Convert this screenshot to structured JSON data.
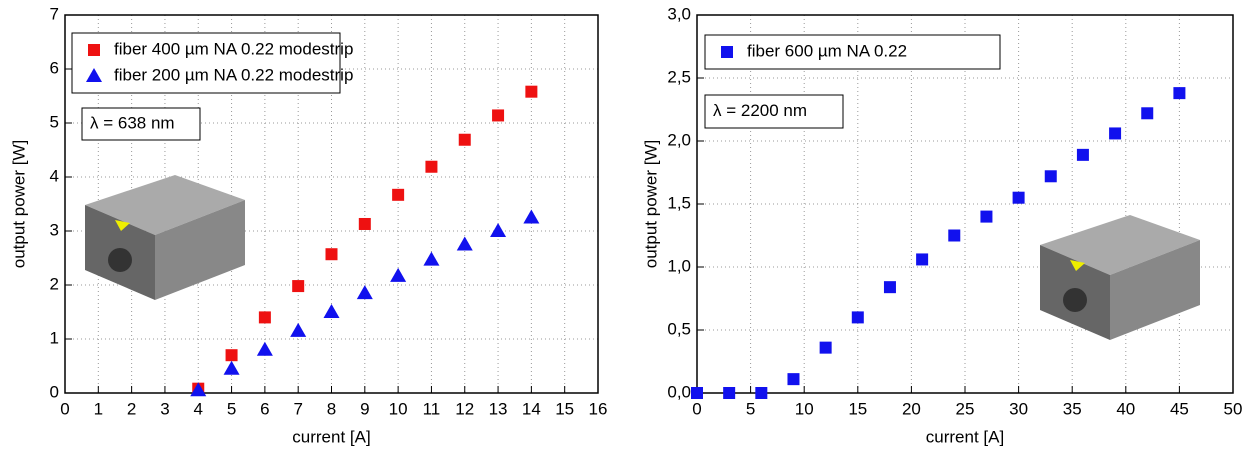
{
  "chart_data": [
    {
      "type": "scatter",
      "x_label": "current [A]",
      "y_label": "output power [W]",
      "annotation": "λ = 638 nm",
      "xlim": [
        0,
        16
      ],
      "xticks": [
        0,
        1,
        2,
        3,
        4,
        5,
        6,
        7,
        8,
        9,
        10,
        11,
        12,
        13,
        14,
        15,
        16
      ],
      "ylim": [
        0,
        7
      ],
      "yticks": [
        0,
        1,
        2,
        3,
        4,
        5,
        6,
        7
      ],
      "grid": true,
      "series": [
        {
          "name": "fiber 400 µm NA 0.22 modestrip",
          "color": "#ee1111",
          "marker": "square",
          "x": [
            4,
            5,
            6,
            7,
            8,
            9,
            10,
            11,
            12,
            13,
            14
          ],
          "values": [
            0.08,
            0.7,
            1.4,
            1.98,
            2.57,
            3.13,
            3.67,
            4.19,
            4.69,
            5.14,
            5.58
          ]
        },
        {
          "name": "fiber 200 µm NA 0.22 modestrip",
          "color": "#1111ee",
          "marker": "triangle",
          "x": [
            4,
            5,
            6,
            7,
            8,
            9,
            10,
            11,
            12,
            13,
            14
          ],
          "values": [
            0.05,
            0.45,
            0.8,
            1.15,
            1.5,
            1.85,
            2.17,
            2.47,
            2.75,
            3.0,
            3.25
          ]
        }
      ]
    },
    {
      "type": "scatter",
      "x_label": "current [A]",
      "y_label": "output power [W]",
      "annotation": "λ = 2200 nm",
      "xlim": [
        0,
        50
      ],
      "xticks": [
        0,
        5,
        10,
        15,
        20,
        25,
        30,
        35,
        40,
        45,
        50
      ],
      "ylim": [
        0,
        3
      ],
      "yticks": [
        {
          "value": 0,
          "label": "0,0"
        },
        {
          "value": 0.5,
          "label": "0,5"
        },
        {
          "value": 1,
          "label": "1,0"
        },
        {
          "value": 1.5,
          "label": "1,5"
        },
        {
          "value": 2,
          "label": "2,0"
        },
        {
          "value": 2.5,
          "label": "2,5"
        },
        {
          "value": 3,
          "label": "3,0"
        }
      ],
      "grid": true,
      "series": [
        {
          "name": "fiber 600 µm NA 0.22",
          "color": "#1111ee",
          "marker": "square",
          "x": [
            0,
            3,
            6,
            9,
            12,
            15,
            18,
            21,
            24,
            27,
            30,
            33,
            36,
            39,
            42,
            45
          ],
          "values": [
            0,
            0,
            0,
            0.11,
            0.36,
            0.6,
            0.84,
            1.06,
            1.25,
            1.4,
            1.55,
            1.72,
            1.89,
            2.06,
            2.22,
            2.38
          ]
        }
      ]
    }
  ]
}
